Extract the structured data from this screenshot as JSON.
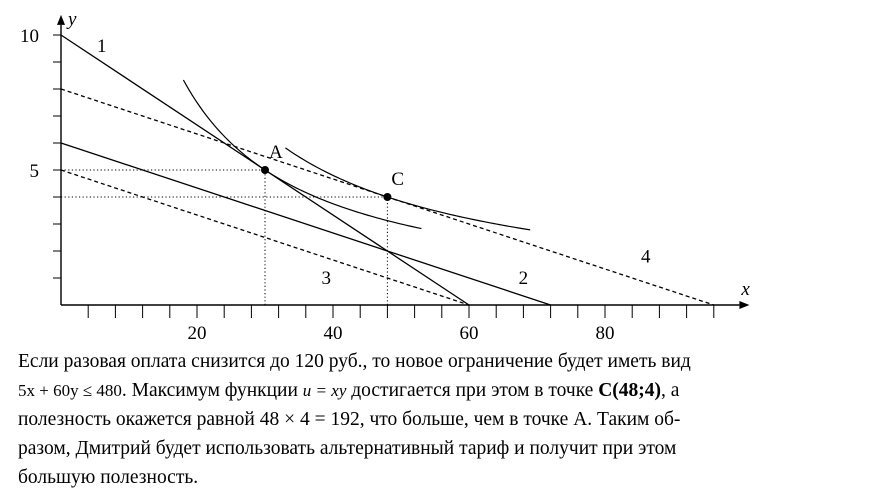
{
  "chart_data": {
    "type": "line",
    "axis_labels": {
      "x": "x",
      "y": "y"
    },
    "x_range": [
      0,
      98
    ],
    "y_range": [
      0,
      10.3
    ],
    "x_ticks": [
      20,
      40,
      60,
      80
    ],
    "y_ticks": [
      5,
      10
    ],
    "lines": [
      {
        "name": "1",
        "style": "solid",
        "points": [
          [
            0,
            10
          ],
          [
            60,
            0
          ]
        ]
      },
      {
        "name": "2",
        "style": "solid",
        "points": [
          [
            0,
            6
          ],
          [
            72,
            0
          ]
        ]
      },
      {
        "name": "3",
        "style": "dashed",
        "points": [
          [
            0,
            5
          ],
          [
            60,
            0
          ]
        ]
      },
      {
        "name": "4",
        "style": "dashed",
        "points": [
          [
            0,
            8
          ],
          [
            96,
            0
          ]
        ]
      }
    ],
    "indifference_curves": [
      {
        "utility": 150,
        "x_from": 18,
        "x_to": 53
      },
      {
        "utility": 192,
        "x_from": 33,
        "x_to": 69
      }
    ],
    "points": [
      {
        "name": "A",
        "x": 30,
        "y": 5
      },
      {
        "name": "C",
        "x": 48,
        "y": 4
      }
    ],
    "guides": [
      {
        "from": [
          0,
          5
        ],
        "to": [
          30,
          5
        ]
      },
      {
        "from": [
          30,
          0
        ],
        "to": [
          30,
          5
        ]
      },
      {
        "from": [
          0,
          4
        ],
        "to": [
          48,
          4
        ]
      },
      {
        "from": [
          48,
          0
        ],
        "to": [
          48,
          4
        ]
      }
    ],
    "line_labels": [
      {
        "text": "1",
        "x": 6,
        "y": 9.6
      },
      {
        "text": "2",
        "x": 68,
        "y": 1.0
      },
      {
        "text": "3",
        "x": 39,
        "y": 1.0
      },
      {
        "text": "4",
        "x": 86,
        "y": 1.8
      }
    ]
  },
  "caption": {
    "l1": "Если разовая оплата снизится до 120 руб., то новое ограничение будет иметь вид",
    "l2_math1": "5x + 60y ≤ 480",
    "l2_text1": ". Максимум функции ",
    "l2_math2": "u = xy",
    "l2_text2": " достигается при этом в точке ",
    "l2_bold": "C(48;4)",
    "l2_text3": ", а",
    "l3": "полезность окажется равной 48 × 4 = 192, что больше, чем в точке А. Таким об-",
    "l4": "разом, Дмитрий будет использовать альтернативный тариф и получит при этом",
    "l5": "большую полезность."
  }
}
